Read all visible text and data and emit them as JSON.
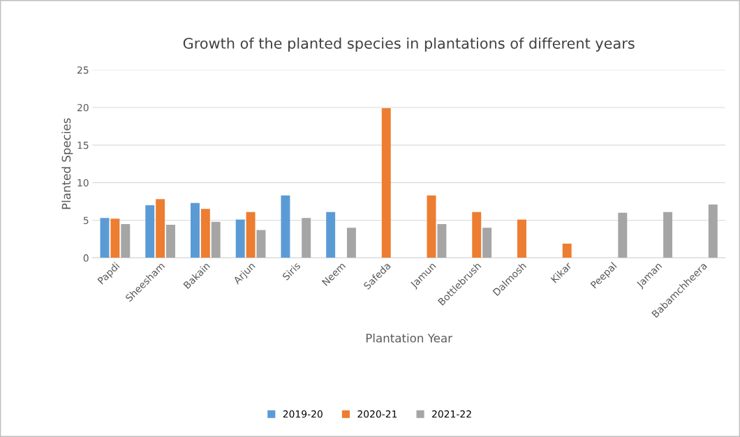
{
  "chart_data": {
    "type": "bar",
    "title": "Growth of the planted species in plantations of different years",
    "xlabel": "Plantation Year",
    "ylabel": "Planted Species",
    "categories": [
      "Papdi",
      "Sheesham",
      "Bakain",
      "Arjun",
      "Siris",
      "Neem",
      "Safeda",
      "Jamun",
      "Bottlebrush",
      "Dalmosh",
      "Kikar",
      "Peepal",
      "Jaman",
      "Babamchheera"
    ],
    "series": [
      {
        "name": "2019-20",
        "color": "#5b9bd5",
        "values": [
          5.3,
          7.0,
          7.3,
          5.1,
          8.3,
          6.1,
          null,
          null,
          null,
          null,
          null,
          null,
          null,
          null
        ]
      },
      {
        "name": "2020-21",
        "color": "#ed7d31",
        "values": [
          5.2,
          7.8,
          6.5,
          6.1,
          null,
          null,
          19.9,
          8.3,
          6.1,
          5.1,
          1.9,
          null,
          null,
          null
        ]
      },
      {
        "name": "2021-22",
        "color": "#a5a5a5",
        "values": [
          4.5,
          4.4,
          4.8,
          3.7,
          5.3,
          4.0,
          null,
          4.5,
          4.0,
          null,
          null,
          6.0,
          6.1,
          7.1
        ]
      }
    ],
    "ylim": [
      0,
      25
    ],
    "yticks": [
      0,
      5,
      10,
      15,
      20,
      25
    ],
    "grid": "y",
    "legend": "bottom"
  }
}
